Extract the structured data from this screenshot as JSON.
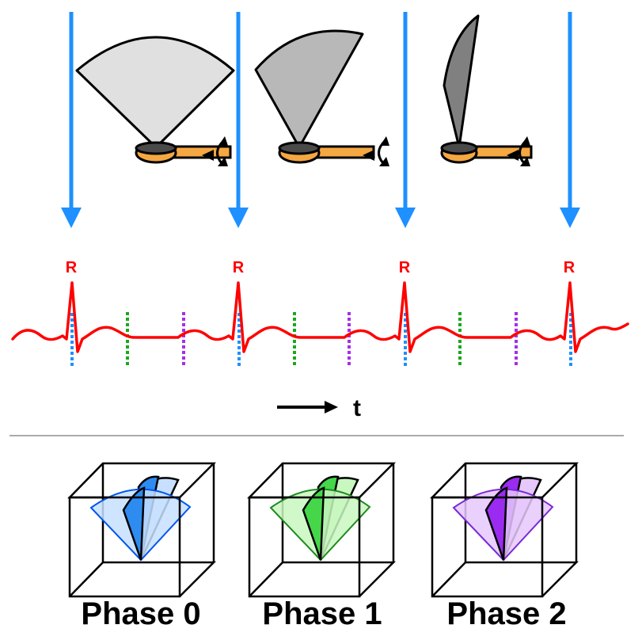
{
  "peak_label": "R",
  "time_label": "t",
  "phases": [
    {
      "label": "Phase 0",
      "color": "#0055ee",
      "fill": "#c7e0ff",
      "fill_dark": "#2e8cf0"
    },
    {
      "label": "Phase 1",
      "color": "#1f8a1f",
      "fill": "#c9f7c0",
      "fill_dark": "#46d64a"
    },
    {
      "label": "Phase 2",
      "color": "#7b2ad6",
      "fill": "#e6c8fb",
      "fill_dark": "#9b2bf0"
    }
  ],
  "colors": {
    "trigger_arrow": "#1e90ff",
    "ecg_trace": "#ff0000",
    "peak_label": "#ff0000",
    "probe_body": "#f5a742",
    "separator": "#aaaaaa",
    "sector_fills": [
      "#e0e0e0",
      "#b8b8b8",
      "#808080"
    ]
  },
  "icons": [
    "down-arrow-icon",
    "ultrasound-probe-icon",
    "rotation-arrow-icon",
    "right-arrow-icon",
    "volume-cube-icon"
  ]
}
